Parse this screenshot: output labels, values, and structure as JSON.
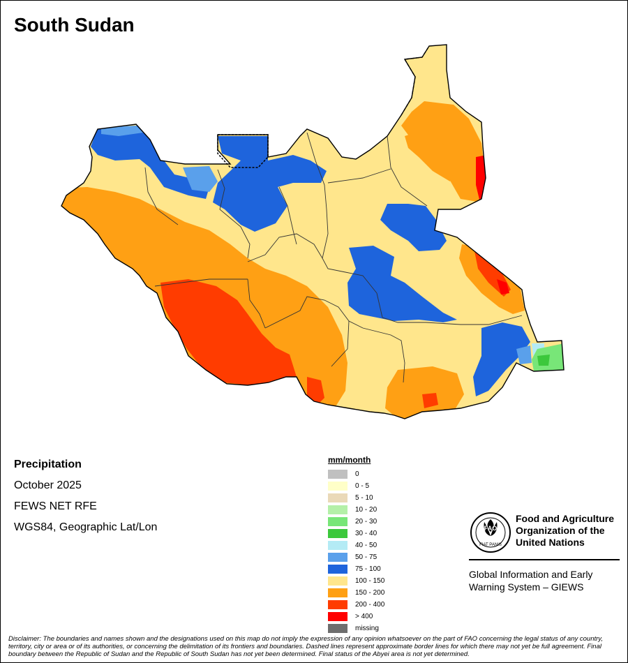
{
  "map": {
    "title": "South Sudan",
    "country": "South Sudan",
    "variable": "Precipitation",
    "period": "October 2025",
    "source": "FEWS NET RFE",
    "projection": "WGS84, Geographic Lat/Lon"
  },
  "legend": {
    "title": "mm/month",
    "items": [
      {
        "label": "0",
        "color": "#c0c0c0"
      },
      {
        "label": "0 - 5",
        "color": "#ffffc8"
      },
      {
        "label": "5 - 10",
        "color": "#ead9b8"
      },
      {
        "label": "10 - 20",
        "color": "#b4f0a8"
      },
      {
        "label": "20 - 30",
        "color": "#78e678"
      },
      {
        "label": "30 - 40",
        "color": "#3cc83c"
      },
      {
        "label": "40 - 50",
        "color": "#b4ebf5"
      },
      {
        "label": "50 - 75",
        "color": "#5aa0eb"
      },
      {
        "label": "75 - 100",
        "color": "#1e64dc"
      },
      {
        "label": "100 - 150",
        "color": "#ffe68c"
      },
      {
        "label": "150 - 200",
        "color": "#ffa014"
      },
      {
        "label": "200 - 400",
        "color": "#ff3c00"
      },
      {
        "label": "> 400",
        "color": "#ff0000"
      },
      {
        "label": "missing",
        "color": "#6e6e6e"
      }
    ]
  },
  "organization": {
    "logo_text": "FAO",
    "logo_motto": "FIAT PANIS",
    "name_lines": [
      "Food and Agriculture",
      "Organization of the",
      "United Nations"
    ],
    "system_lines": [
      "Global Information and Early",
      "Warning System – GIEWS"
    ]
  },
  "disclaimer": "Disclaimer: The boundaries and names shown and the designations used on this map do not imply the expression of any opinion whatsoever on the part of FAO concerning the legal status of any country, territory, city or area or of its authorities, or concerning the delimitation of its frontiers and boundaries. Dashed lines represent approximate border lines for which there may not yet be full agreement.  Final boundary between the Republic of Sudan and the Republic of South Sudan has not yet been determined. Final status of the Abyei area is not yet determined."
}
